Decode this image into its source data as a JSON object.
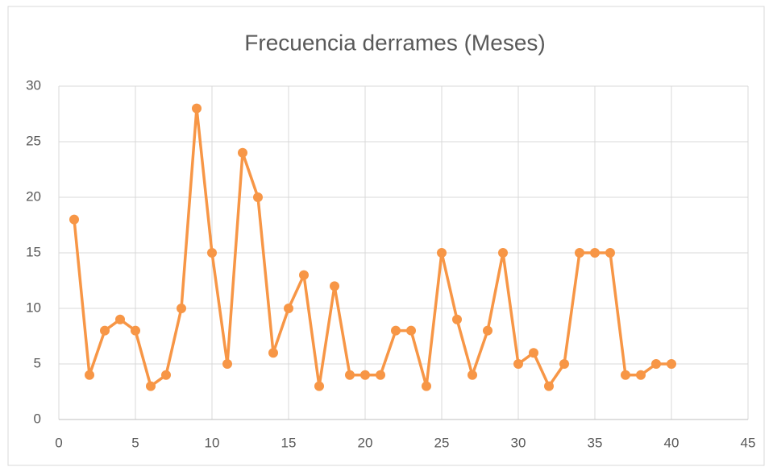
{
  "chart_data": {
    "type": "line",
    "title": "Frecuencia derrames (Meses)",
    "x": [
      1,
      2,
      3,
      4,
      5,
      6,
      7,
      8,
      9,
      10,
      11,
      12,
      13,
      14,
      15,
      16,
      17,
      18,
      19,
      20,
      21,
      22,
      23,
      24,
      25,
      26,
      27,
      28,
      29,
      30,
      31,
      32,
      33,
      34,
      35,
      36,
      37,
      38,
      39,
      40
    ],
    "series": [
      {
        "name": "Frecuencia",
        "color": "#f79646",
        "values": [
          18,
          4,
          8,
          9,
          8,
          3,
          4,
          10,
          28,
          15,
          5,
          24,
          20,
          6,
          10,
          13,
          3,
          12,
          4,
          4,
          4,
          8,
          8,
          3,
          15,
          9,
          4,
          8,
          15,
          5,
          6,
          3,
          5,
          15,
          15,
          15,
          4,
          4,
          5,
          5
        ]
      }
    ],
    "xlim": [
      0,
      45
    ],
    "xticks": [
      0,
      5,
      10,
      15,
      20,
      25,
      30,
      35,
      40,
      45
    ],
    "ylim": [
      0,
      30
    ],
    "yticks": [
      0,
      5,
      10,
      15,
      20,
      25,
      30
    ],
    "grid": true
  }
}
